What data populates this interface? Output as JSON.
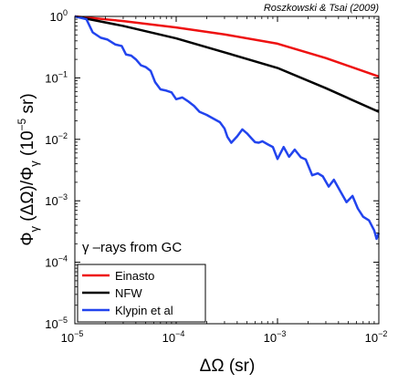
{
  "credit": "Roszkowski & Tsai (2009)",
  "chart_data": {
    "type": "line",
    "xlabel": "ΔΩ (sr)",
    "ylabel": "Φγ (ΔΩ)/Φγ (10⁻⁵ sr)",
    "ylabel_parts": {
      "main": "Φ",
      "sub": "γ",
      "mid": " (ΔΩ)/Φ",
      "sub2": "γ",
      "end": " (10",
      "exp": "−5",
      "close": " sr)"
    },
    "x_scale": "log",
    "y_scale": "log",
    "xlim": [
      1e-05,
      0.01
    ],
    "ylim": [
      1e-05,
      1
    ],
    "xtick_labels": [
      {
        "value": 1e-05,
        "base": "10",
        "exp": "−5"
      },
      {
        "value": 0.0001,
        "base": "10",
        "exp": "−4"
      },
      {
        "value": 0.001,
        "base": "10",
        "exp": "−3"
      },
      {
        "value": 0.01,
        "base": "10",
        "exp": "−2"
      }
    ],
    "ytick_labels": [
      {
        "value": 1e-05,
        "base": "10",
        "exp": "−5"
      },
      {
        "value": 0.0001,
        "base": "10",
        "exp": "−4"
      },
      {
        "value": 0.001,
        "base": "10",
        "exp": "−3"
      },
      {
        "value": 0.01,
        "base": "10",
        "exp": "−2"
      },
      {
        "value": 0.1,
        "base": "10",
        "exp": "−1"
      },
      {
        "value": 1,
        "base": "10",
        "exp": "0"
      }
    ],
    "annotation": "γ –rays from GC",
    "legend_position": "bottom-left",
    "grid": false,
    "series": [
      {
        "name": "Einasto",
        "color": "#ee1111",
        "x": [
          1e-05,
          3e-05,
          0.0001,
          0.0003,
          0.001,
          0.003,
          0.01
        ],
        "y": [
          1.0,
          0.84,
          0.66,
          0.51,
          0.36,
          0.21,
          0.105
        ]
      },
      {
        "name": "NFW",
        "color": "#000000",
        "x": [
          1e-05,
          3e-05,
          0.0001,
          0.0003,
          0.001,
          0.003,
          0.01
        ],
        "y": [
          1.0,
          0.7,
          0.44,
          0.26,
          0.145,
          0.068,
          0.028
        ]
      },
      {
        "name": "Klypin et al",
        "color": "#2244ee",
        "x": [
          1e-05,
          1.3e-05,
          1.5e-05,
          1.8e-05,
          2.1e-05,
          2.5e-05,
          2.9e-05,
          3.2e-05,
          3.6e-05,
          4e-05,
          4.5e-05,
          5e-05,
          5.6e-05,
          6.2e-05,
          7e-05,
          8e-05,
          9e-05,
          0.0001,
          0.000115,
          0.00013,
          0.00015,
          0.00017,
          0.0002,
          0.00023,
          0.00027,
          0.0003,
          0.00032,
          0.00035,
          0.0004,
          0.00045,
          0.0005,
          0.00055,
          0.0006,
          0.00065,
          0.00071,
          0.0008,
          0.0009,
          0.001,
          0.00115,
          0.0013,
          0.00148,
          0.0017,
          0.0019,
          0.0022,
          0.0025,
          0.0028,
          0.0032,
          0.0036,
          0.0042,
          0.0048,
          0.0055,
          0.0062,
          0.007,
          0.008,
          0.009,
          0.0095,
          0.01
        ],
        "y": [
          1.0,
          0.9,
          0.55,
          0.45,
          0.42,
          0.35,
          0.33,
          0.24,
          0.23,
          0.2,
          0.16,
          0.15,
          0.13,
          0.085,
          0.065,
          0.062,
          0.058,
          0.045,
          0.048,
          0.042,
          0.035,
          0.028,
          0.025,
          0.022,
          0.019,
          0.015,
          0.011,
          0.0088,
          0.0112,
          0.0145,
          0.0125,
          0.0105,
          0.009,
          0.0088,
          0.0093,
          0.0083,
          0.0075,
          0.0048,
          0.0075,
          0.0052,
          0.0068,
          0.0051,
          0.0047,
          0.0026,
          0.0028,
          0.0025,
          0.0017,
          0.0022,
          0.0014,
          0.00095,
          0.0012,
          0.00075,
          0.00055,
          0.00048,
          0.00033,
          0.00024,
          0.0003
        ]
      }
    ]
  }
}
